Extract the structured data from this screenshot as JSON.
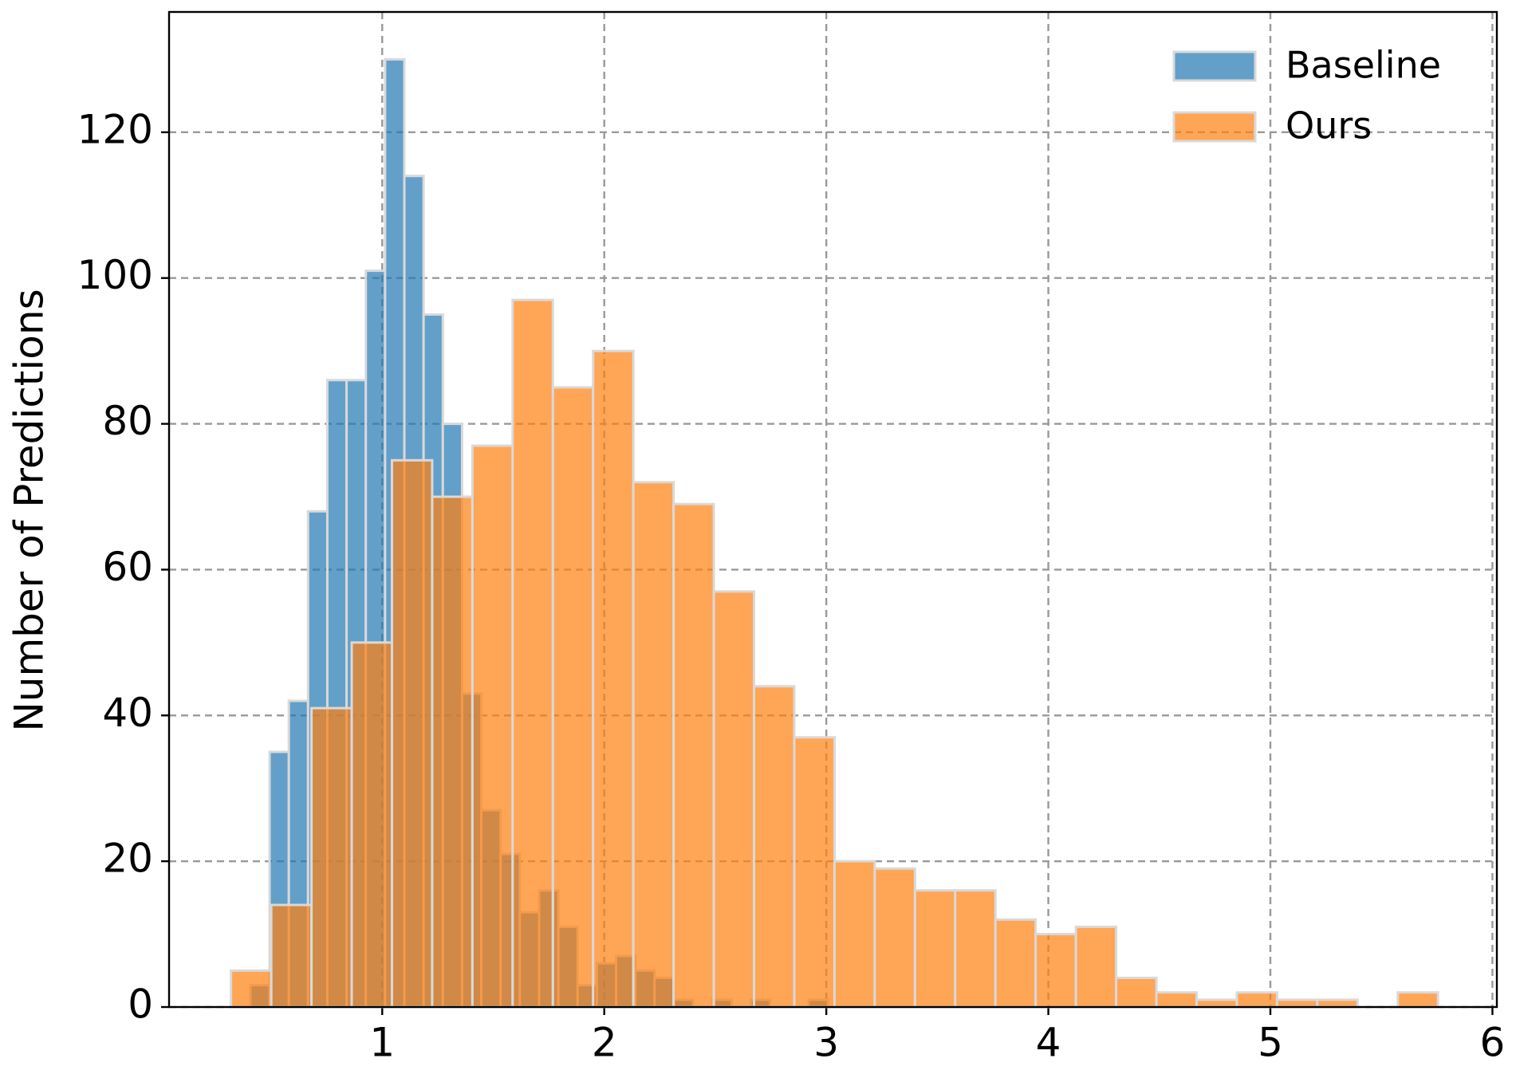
{
  "chart_data": {
    "type": "histogram",
    "y_label": "Number of Predictions",
    "xlim": [
      0.04,
      6.02
    ],
    "ylim": [
      0,
      136.5
    ],
    "xticks": [
      1,
      2,
      3,
      4,
      5,
      6
    ],
    "yticks": [
      0,
      20,
      40,
      60,
      80,
      100,
      120
    ],
    "grid": true,
    "legend": "upper right",
    "series": [
      {
        "name": "Baseline",
        "color": "#1f77b4",
        "bins": [
          0.406,
          0.4927,
          0.5794,
          0.6661,
          0.7528,
          0.8395,
          0.9262,
          1.0129,
          1.0996,
          1.1863,
          1.273,
          1.3597,
          1.4464,
          1.5331,
          1.6198,
          1.7065,
          1.7932,
          1.8799,
          1.9666,
          2.0533,
          2.14,
          2.2267,
          2.3134,
          2.4001,
          2.4868,
          2.5735,
          2.6602,
          2.7469,
          2.8336,
          2.9203,
          3.007
        ],
        "values": [
          3,
          35,
          42,
          68,
          86,
          86,
          101,
          130,
          114,
          95,
          80,
          43,
          27,
          21,
          13,
          16,
          11,
          3,
          6,
          7,
          5,
          4,
          1,
          0,
          1,
          0,
          1,
          0,
          0,
          1
        ]
      },
      {
        "name": "Ours",
        "color": "#ff7f0e",
        "bins": [
          0.319,
          0.5002,
          0.6814,
          0.8626,
          1.0438,
          1.225,
          1.4062,
          1.5874,
          1.7686,
          1.9498,
          2.131,
          2.3122,
          2.4934,
          2.6746,
          2.8558,
          3.037,
          3.2182,
          3.3994,
          3.5806,
          3.7618,
          3.943,
          4.1242,
          4.3054,
          4.4866,
          4.6678,
          4.849,
          5.0302,
          5.2114,
          5.3926,
          5.5738,
          5.755
        ],
        "values": [
          5,
          14,
          41,
          50,
          75,
          70,
          77,
          97,
          85,
          90,
          72,
          69,
          57,
          44,
          37,
          20,
          19,
          16,
          16,
          12,
          10,
          11,
          4,
          2,
          1,
          2,
          1,
          1,
          0,
          2
        ]
      }
    ]
  }
}
